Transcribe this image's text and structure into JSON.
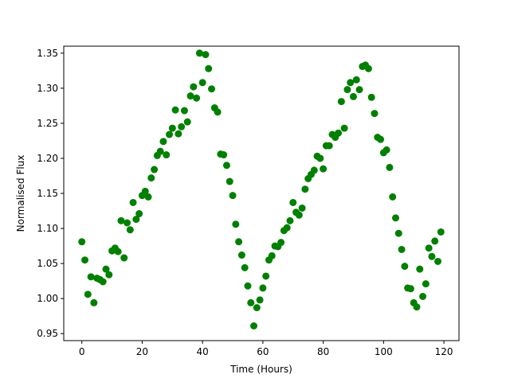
{
  "chart_data": {
    "type": "scatter",
    "title": "",
    "xlabel": "Time (Hours)",
    "ylabel": "Normalised Flux",
    "xlim": [
      -6,
      125
    ],
    "ylim": [
      0.94,
      1.36
    ],
    "xticks": [
      0,
      20,
      40,
      60,
      80,
      100,
      120
    ],
    "yticks": [
      0.95,
      1.0,
      1.05,
      1.1,
      1.15,
      1.2,
      1.25,
      1.3,
      1.35
    ],
    "grid": false,
    "legend": "none",
    "marker_color": "#008000",
    "series": [
      {
        "x": [
          0,
          1,
          2,
          3,
          4,
          5,
          6,
          7,
          8,
          9,
          10,
          11,
          12,
          13,
          14,
          15,
          16,
          17,
          18,
          19,
          20,
          21,
          22,
          23,
          24,
          25,
          26,
          27,
          28,
          29,
          30,
          31,
          32,
          33,
          34,
          35,
          36,
          37,
          38,
          39,
          40,
          41,
          42,
          43,
          44,
          45,
          46,
          47,
          48,
          49,
          50,
          51,
          52,
          53,
          54,
          55,
          56,
          57,
          58,
          59,
          60,
          61,
          62,
          63,
          64,
          65,
          66,
          67,
          68,
          69,
          70,
          71,
          72,
          73,
          74,
          75,
          76,
          77,
          78,
          79,
          80,
          81,
          82,
          83,
          84,
          85,
          86,
          87,
          88,
          89,
          90,
          91,
          92,
          93,
          94,
          95,
          96,
          97,
          98,
          99,
          100,
          101,
          102,
          103,
          104,
          105,
          106,
          107,
          108,
          109,
          110,
          111,
          112,
          113,
          114,
          115,
          116,
          117,
          118,
          119
        ],
        "y": [
          1.081,
          1.055,
          1.006,
          1.031,
          0.994,
          1.029,
          1.027,
          1.024,
          1.042,
          1.034,
          1.068,
          1.072,
          1.067,
          1.111,
          1.058,
          1.108,
          1.098,
          1.137,
          1.113,
          1.121,
          1.147,
          1.153,
          1.145,
          1.172,
          1.184,
          1.204,
          1.21,
          1.224,
          1.205,
          1.234,
          1.243,
          1.269,
          1.235,
          1.245,
          1.268,
          1.252,
          1.289,
          1.302,
          1.286,
          1.35,
          1.308,
          1.348,
          1.328,
          1.299,
          1.272,
          1.266,
          1.206,
          1.205,
          1.19,
          1.167,
          1.147,
          1.106,
          1.081,
          1.062,
          1.044,
          1.018,
          0.994,
          0.961,
          0.987,
          0.998,
          1.015,
          1.032,
          1.055,
          1.061,
          1.075,
          1.074,
          1.08,
          1.097,
          1.101,
          1.111,
          1.137,
          1.123,
          1.119,
          1.129,
          1.156,
          1.171,
          1.177,
          1.183,
          1.203,
          1.2,
          1.185,
          1.218,
          1.218,
          1.234,
          1.23,
          1.236,
          1.281,
          1.243,
          1.298,
          1.308,
          1.288,
          1.312,
          1.298,
          1.331,
          1.333,
          1.328,
          1.287,
          1.264,
          1.23,
          1.227,
          1.208,
          1.212,
          1.187,
          1.145,
          1.115,
          1.093,
          1.07,
          1.046,
          1.015,
          1.014,
          0.994,
          0.988,
          1.042,
          1.003,
          1.021,
          1.072,
          1.06,
          1.082,
          1.053,
          1.095
        ]
      }
    ]
  }
}
